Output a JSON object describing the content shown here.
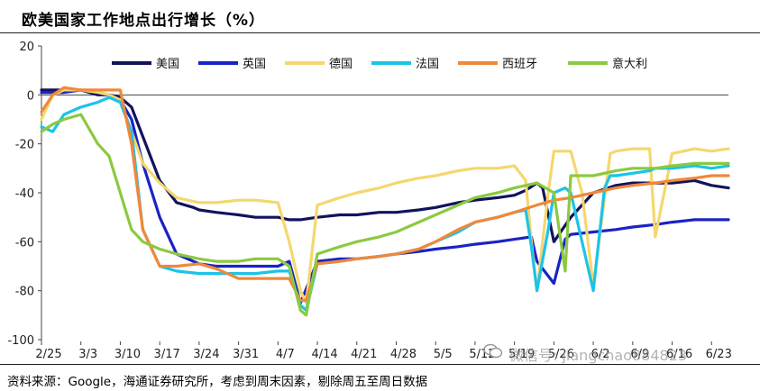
{
  "title": "欧美国家工作地点出行增长（%）",
  "source": "资料来源：Google，海通证券研究所，考虑到周末因素，剔除周五至周日数据",
  "watermark": "微信号: jiangchao884823",
  "chart_data": {
    "type": "line",
    "title": "欧美国家工作地点出行增长（%）",
    "xlabel": "",
    "ylabel": "",
    "ylim": [
      -100,
      20
    ],
    "yticks": [
      20,
      0,
      -20,
      -40,
      -60,
      -80,
      -100
    ],
    "x_tick_labels": [
      "2/25",
      "3/3",
      "3/10",
      "3/17",
      "3/24",
      "3/31",
      "4/7",
      "4/14",
      "4/21",
      "4/28",
      "5/5",
      "5/12",
      "5/19",
      "5/26",
      "6/2",
      "6/9",
      "6/16",
      "6/23"
    ],
    "x_tick_days": [
      0,
      7,
      14,
      21,
      28,
      35,
      42,
      49,
      56,
      63,
      70,
      77,
      84,
      91,
      98,
      105,
      112,
      119
    ],
    "x_range_days": [
      0,
      122
    ],
    "grid": false,
    "legend_position": "top",
    "series": [
      {
        "name": "美国",
        "color": "#12135e",
        "x": [
          0,
          4,
          7,
          10,
          12,
          14,
          16,
          18,
          21,
          24,
          27,
          28,
          31,
          35,
          38,
          42,
          44,
          46,
          49,
          53,
          56,
          60,
          63,
          67,
          70,
          74,
          77,
          81,
          84,
          86,
          88,
          89,
          91,
          94,
          98,
          102,
          105,
          109,
          112,
          116,
          119,
          122
        ],
        "y": [
          2,
          2,
          2,
          0,
          0,
          -1,
          -5,
          -17,
          -35,
          -44,
          -46,
          -47,
          -48,
          -49,
          -50,
          -50,
          -51,
          -51,
          -50,
          -49,
          -49,
          -48,
          -48,
          -47,
          -46,
          -44,
          -43,
          -42,
          -41,
          -39,
          -36,
          -38,
          -60,
          -50,
          -40,
          -37,
          -36,
          -36,
          -36,
          -35,
          -37,
          -38
        ]
      },
      {
        "name": "英国",
        "color": "#1a23c4",
        "x": [
          0,
          4,
          7,
          10,
          12,
          14,
          16,
          18,
          21,
          24,
          27,
          28,
          31,
          35,
          38,
          42,
          44,
          46,
          49,
          53,
          56,
          60,
          63,
          67,
          70,
          74,
          77,
          81,
          84,
          87,
          88,
          91,
          93,
          94,
          98,
          102,
          105,
          109,
          112,
          116,
          119,
          122
        ],
        "y": [
          1,
          1,
          2,
          1,
          0,
          -2,
          -10,
          -28,
          -50,
          -65,
          -68,
          -69,
          -70,
          -70,
          -70,
          -70,
          -68,
          -85,
          -68,
          -67,
          -67,
          -66,
          -65,
          -64,
          -63,
          -62,
          -61,
          -60,
          -59,
          -58,
          -68,
          -77,
          -59,
          -57,
          -56,
          -55,
          -54,
          -53,
          -52,
          -51,
          -51,
          -51
        ]
      },
      {
        "name": "德国",
        "color": "#f5d76e",
        "x": [
          0,
          2,
          4,
          7,
          10,
          12,
          14,
          16,
          18,
          21,
          24,
          28,
          31,
          35,
          38,
          42,
          44,
          46,
          47,
          49,
          53,
          56,
          60,
          63,
          67,
          70,
          74,
          77,
          81,
          84,
          86,
          87,
          88,
          90,
          91,
          93,
          94,
          96,
          98,
          100,
          101,
          102,
          105,
          108,
          109,
          112,
          116,
          119,
          122
        ],
        "y": [
          -10,
          0,
          2,
          2,
          1,
          0,
          -2,
          -15,
          -28,
          -36,
          -42,
          -44,
          -44,
          -43,
          -43,
          -44,
          -60,
          -80,
          -85,
          -45,
          -42,
          -40,
          -38,
          -36,
          -34,
          -33,
          -31,
          -30,
          -30,
          -29,
          -35,
          -60,
          -80,
          -40,
          -23,
          -23,
          -23,
          -40,
          -78,
          -42,
          -24,
          -23,
          -22,
          -22,
          -58,
          -24,
          -22,
          -23,
          -22
        ]
      },
      {
        "name": "法国",
        "color": "#1cc3e8",
        "x": [
          0,
          2,
          4,
          7,
          10,
          12,
          14,
          16,
          18,
          21,
          24,
          28,
          31,
          35,
          38,
          42,
          44,
          46,
          47,
          49,
          53,
          56,
          60,
          63,
          67,
          70,
          74,
          77,
          81,
          84,
          86,
          87,
          88,
          90,
          91,
          93,
          94,
          96,
          98,
          100,
          101,
          102,
          105,
          108,
          109,
          112,
          116,
          119,
          122
        ],
        "y": [
          -13,
          -15,
          -8,
          -5,
          -3,
          -1,
          -3,
          -15,
          -55,
          -70,
          -72,
          -73,
          -73,
          -73,
          -73,
          -72,
          -72,
          -86,
          -88,
          -69,
          -68,
          -67,
          -66,
          -65,
          -63,
          -60,
          -56,
          -52,
          -50,
          -48,
          -47,
          -62,
          -80,
          -55,
          -40,
          -38,
          -40,
          -60,
          -80,
          -38,
          -33,
          -33,
          -32,
          -31,
          -30,
          -30,
          -29,
          -30,
          -29
        ]
      },
      {
        "name": "西班牙",
        "color": "#f0883a",
        "x": [
          0,
          2,
          4,
          7,
          10,
          12,
          14,
          16,
          18,
          21,
          24,
          28,
          31,
          35,
          38,
          42,
          44,
          46,
          47,
          49,
          53,
          56,
          60,
          63,
          67,
          70,
          74,
          77,
          81,
          84,
          88,
          91,
          94,
          98,
          102,
          105,
          109,
          112,
          116,
          119,
          122
        ],
        "y": [
          -7,
          0,
          3,
          2,
          2,
          2,
          2,
          -20,
          -55,
          -70,
          -70,
          -69,
          -71,
          -75,
          -75,
          -75,
          -75,
          -84,
          -84,
          -69,
          -68,
          -67,
          -66,
          -65,
          -63,
          -60,
          -55,
          -52,
          -50,
          -48,
          -45,
          -43,
          -42,
          -40,
          -38,
          -37,
          -36,
          -35,
          -34,
          -33,
          -33
        ]
      },
      {
        "name": "意大利",
        "color": "#8cc940",
        "x": [
          0,
          2,
          4,
          7,
          10,
          12,
          14,
          16,
          18,
          21,
          24,
          28,
          31,
          35,
          38,
          42,
          44,
          46,
          47,
          49,
          53,
          56,
          60,
          63,
          67,
          70,
          74,
          77,
          81,
          84,
          88,
          91,
          93,
          94,
          98,
          102,
          105,
          109,
          112,
          116,
          119,
          122
        ],
        "y": [
          -15,
          -12,
          -10,
          -8,
          -20,
          -25,
          -40,
          -55,
          -60,
          -63,
          -65,
          -67,
          -68,
          -68,
          -67,
          -67,
          -70,
          -88,
          -90,
          -65,
          -62,
          -60,
          -58,
          -56,
          -52,
          -49,
          -45,
          -42,
          -40,
          -38,
          -36,
          -40,
          -72,
          -33,
          -33,
          -31,
          -30,
          -30,
          -29,
          -28,
          -28,
          -28
        ]
      }
    ]
  }
}
